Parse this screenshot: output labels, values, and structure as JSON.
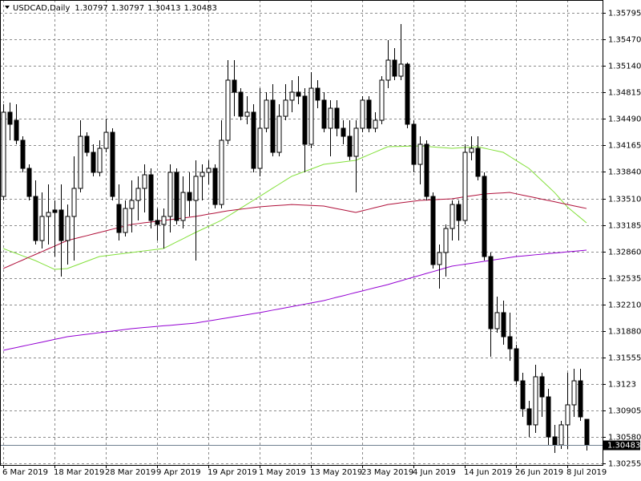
{
  "chart_data": {
    "type": "candlestick",
    "title": "USDCAD,Daily",
    "categories": [
      "6 Mar 2019",
      null,
      null,
      null,
      null,
      null,
      null,
      null,
      "18 Mar 2019",
      null,
      null,
      null,
      null,
      null,
      null,
      null,
      "28 Mar 2019",
      null,
      null,
      null,
      null,
      null,
      null,
      null,
      "9 Apr 2019",
      null,
      null,
      null,
      null,
      null,
      null,
      null,
      "19 Apr 2019",
      null,
      null,
      null,
      null,
      null,
      null,
      null,
      "1 May 2019",
      null,
      null,
      null,
      null,
      null,
      null,
      null,
      "13 May 2019",
      null,
      null,
      null,
      null,
      null,
      null,
      null,
      "23 May 2019",
      null,
      null,
      null,
      null,
      null,
      null,
      null,
      "4 Jun 2019",
      null,
      null,
      null,
      null,
      null,
      null,
      null,
      "14 Jun 2019",
      null,
      null,
      null,
      null,
      null,
      null,
      null,
      "26 Jun 2019",
      null,
      null,
      null,
      null,
      null,
      null,
      null,
      "8 Jul 2019",
      null,
      null,
      null
    ],
    "open": [
      1.33536,
      1.34571,
      1.34472,
      1.34226,
      1.33881,
      1.33536,
      1.32994,
      1.3329,
      1.33369,
      1.33369,
      1.32994,
      1.3329,
      1.33635,
      1.34275,
      1.34078,
      1.33832,
      1.34127,
      1.34324,
      1.33437,
      1.33093,
      1.33388,
      1.33487,
      1.33635,
      1.33802,
      1.33241,
      1.33192,
      1.3329,
      1.33832,
      1.33241,
      1.33585,
      1.33487,
      1.33783,
      1.33832,
      1.33881,
      1.33437,
      1.34226,
      1.34965,
      1.34817,
      1.34521,
      1.34571,
      1.33881,
      1.34374,
      1.34719,
      1.34078,
      1.34521,
      1.34719,
      1.34817,
      1.34768,
      1.34177,
      1.34866,
      1.34719,
      1.34374,
      1.3462,
      1.34374,
      1.34275,
      1.34029,
      1.34374,
      1.34719,
      1.34374,
      1.34472,
      1.34965,
      1.35211,
      1.35014,
      1.35162,
      1.34423,
      1.3393,
      1.34177,
      1.33536,
      1.32699,
      1.32847,
      1.33142,
      1.33437,
      1.33241,
      1.34078,
      1.34127,
      1.33783,
      1.32797,
      1.31911,
      1.32108,
      1.31812,
      1.31664,
      1.3127,
      1.30926,
      1.30729,
      1.3132,
      1.31073,
      1.30581,
      1.30482,
      1.30729,
      1.30975,
      1.3127,
      1.30797
    ],
    "high": [
      1.34669,
      1.34689,
      1.34669,
      1.34275,
      1.3393,
      1.33733,
      1.33585,
      1.33684,
      1.33487,
      1.33684,
      1.33437,
      1.34029,
      1.34472,
      1.34324,
      1.34177,
      1.34226,
      1.34492,
      1.34374,
      1.33684,
      1.33487,
      1.33733,
      1.33783,
      1.3393,
      1.33881,
      1.33388,
      1.33388,
      1.3393,
      1.33881,
      1.33783,
      1.33832,
      1.3398,
      1.3393,
      1.3398,
      1.3393,
      1.34472,
      1.35211,
      1.35211,
      1.34866,
      1.34768,
      1.34669,
      1.34866,
      1.34817,
      1.34916,
      1.34669,
      1.34916,
      1.34965,
      1.35014,
      1.34866,
      1.35063,
      1.34965,
      1.34817,
      1.34719,
      1.34719,
      1.34472,
      1.34472,
      1.34472,
      1.34768,
      1.34768,
      1.34571,
      1.35014,
      1.35457,
      1.35359,
      1.35654,
      1.35182,
      1.34472,
      1.34275,
      1.34226,
      1.33585,
      1.32945,
      1.33192,
      1.33487,
      1.33487,
      1.34177,
      1.34275,
      1.34275,
      1.33832,
      1.32847,
      1.32305,
      1.32256,
      1.32108,
      1.31714,
      1.31369,
      1.31024,
      1.31467,
      1.31369,
      1.31172,
      1.30729,
      1.30778,
      1.31369,
      1.31418,
      1.31418,
      1.30797
    ],
    "low": [
      1.33487,
      1.34226,
      1.34177,
      1.33832,
      1.33487,
      1.32945,
      1.32896,
      1.32945,
      1.32797,
      1.32551,
      1.32699,
      1.32748,
      1.33585,
      1.34029,
      1.33783,
      1.33783,
      1.34078,
      1.33487,
      1.32994,
      1.33044,
      1.33093,
      1.33241,
      1.33339,
      1.33142,
      1.32994,
      1.32896,
      1.33093,
      1.33192,
      1.33142,
      1.3329,
      1.32748,
      1.33487,
      1.33684,
      1.33388,
      1.33388,
      1.34177,
      1.34521,
      1.34472,
      1.34423,
      1.33832,
      1.33783,
      1.34324,
      1.34029,
      1.34029,
      1.34472,
      1.34571,
      1.34669,
      1.33832,
      1.34127,
      1.3462,
      1.34324,
      1.34029,
      1.34275,
      1.34177,
      1.3398,
      1.33585,
      1.34324,
      1.34324,
      1.34324,
      1.34423,
      1.34866,
      1.34965,
      1.34965,
      1.34374,
      1.33832,
      1.33684,
      1.33487,
      1.3265,
      1.32403,
      1.32551,
      1.32994,
      1.32994,
      1.33192,
      1.3398,
      1.33733,
      1.32748,
      1.31566,
      1.31861,
      1.31714,
      1.31516,
      1.31221,
      1.30827,
      1.30581,
      1.3063,
      1.30827,
      1.30482,
      1.30384,
      1.30433,
      1.30433,
      1.30827,
      1.30778,
      1.30413
    ],
    "close": [
      1.34571,
      1.34423,
      1.34226,
      1.33881,
      1.33536,
      1.32994,
      1.3329,
      1.33339,
      1.33339,
      1.32994,
      1.3329,
      1.33635,
      1.34275,
      1.34078,
      1.33832,
      1.34127,
      1.34324,
      1.33536,
      1.33093,
      1.33388,
      1.33487,
      1.33635,
      1.33802,
      1.33241,
      1.33192,
      1.3329,
      1.33832,
      1.33241,
      1.33585,
      1.33487,
      1.33783,
      1.33832,
      1.33881,
      1.33437,
      1.34226,
      1.34965,
      1.34817,
      1.34521,
      1.34571,
      1.33881,
      1.34374,
      1.34719,
      1.34078,
      1.34521,
      1.34719,
      1.34817,
      1.34768,
      1.34177,
      1.34866,
      1.34719,
      1.34374,
      1.3462,
      1.34374,
      1.34275,
      1.34029,
      1.34374,
      1.34719,
      1.34374,
      1.34472,
      1.34965,
      1.35211,
      1.35014,
      1.35162,
      1.34423,
      1.3393,
      1.34177,
      1.33536,
      1.32699,
      1.32847,
      1.33142,
      1.33437,
      1.33241,
      1.34078,
      1.34127,
      1.33783,
      1.32797,
      1.31911,
      1.32108,
      1.31812,
      1.31664,
      1.3127,
      1.30926,
      1.30729,
      1.3132,
      1.31073,
      1.30581,
      1.30482,
      1.30729,
      1.30975,
      1.3127,
      1.30827,
      1.30483
    ],
    "moving_averages": [
      {
        "color": "#84e03c",
        "values": [
          1.32896,
          1.32866,
          1.32837,
          1.32807,
          1.32778,
          1.32748,
          1.32712,
          1.32676,
          1.3264,
          1.32645,
          1.3265,
          1.32679,
          1.32709,
          1.32738,
          1.32768,
          1.32797,
          1.32807,
          1.32817,
          1.32827,
          1.32837,
          1.32847,
          1.32857,
          1.32867,
          1.32876,
          1.32886,
          1.32896,
          1.32935,
          1.32975,
          1.33014,
          1.33054,
          1.33093,
          1.3313,
          1.33167,
          1.33204,
          1.33241,
          1.3329,
          1.33339,
          1.33389,
          1.33438,
          1.33487,
          1.33536,
          1.33585,
          1.33635,
          1.33684,
          1.33734,
          1.33783,
          1.33812,
          1.33842,
          1.33871,
          1.33901,
          1.3393,
          1.3394,
          1.3395,
          1.3396,
          1.3397,
          1.3398,
          1.34013,
          1.34047,
          1.3408,
          1.34114,
          1.34147,
          1.34149,
          1.34151,
          1.34153,
          1.34155,
          1.34157,
          1.34151,
          1.34145,
          1.34139,
          1.34133,
          1.34127,
          1.34132,
          1.34137,
          1.34142,
          1.34147,
          1.3413,
          1.34112,
          1.34095,
          1.34078,
          1.34029,
          1.33979,
          1.3393,
          1.33881,
          1.33807,
          1.33733,
          1.33659,
          1.33585,
          1.33497,
          1.33408,
          1.33342,
          1.33277,
          1.33211
        ]
      },
      {
        "color": "#b0103a",
        "values": [
          1.3265,
          1.32684,
          1.32719,
          1.32753,
          1.32788,
          1.32822,
          1.32856,
          1.32891,
          1.32925,
          1.3296,
          1.32994,
          1.33014,
          1.33034,
          1.33053,
          1.33073,
          1.33093,
          1.33113,
          1.33133,
          1.33152,
          1.33172,
          1.33192,
          1.33202,
          1.33212,
          1.33221,
          1.33231,
          1.33241,
          1.33251,
          1.33261,
          1.3327,
          1.3328,
          1.3329,
          1.33304,
          1.33318,
          1.33331,
          1.33345,
          1.33359,
          1.33369,
          1.33379,
          1.33388,
          1.33398,
          1.33408,
          1.33414,
          1.3342,
          1.33425,
          1.33431,
          1.33437,
          1.33433,
          1.33429,
          1.33426,
          1.33422,
          1.33418,
          1.33402,
          1.33386,
          1.33371,
          1.33355,
          1.33339,
          1.33359,
          1.33378,
          1.33398,
          1.33417,
          1.33437,
          1.33447,
          1.33457,
          1.33467,
          1.33477,
          1.33487,
          1.33491,
          1.33495,
          1.33499,
          1.33503,
          1.33507,
          1.33519,
          1.33531,
          1.33542,
          1.33554,
          1.33566,
          1.33571,
          1.33576,
          1.3358,
          1.33585,
          1.33569,
          1.33552,
          1.33536,
          1.3352,
          1.33503,
          1.33487,
          1.33471,
          1.33454,
          1.33438,
          1.33421,
          1.33405,
          1.33388
        ]
      },
      {
        "color": "#9400d3",
        "values": [
          1.31645,
          1.31662,
          1.31678,
          1.31695,
          1.31712,
          1.31729,
          1.31745,
          1.31762,
          1.31779,
          1.31795,
          1.31812,
          1.31822,
          1.31832,
          1.31842,
          1.31852,
          1.31862,
          1.31871,
          1.31881,
          1.31891,
          1.31901,
          1.31911,
          1.31918,
          1.31925,
          1.31932,
          1.31939,
          1.31946,
          1.31952,
          1.31959,
          1.31966,
          1.31973,
          1.3198,
          1.31993,
          1.32006,
          1.32018,
          1.32031,
          1.32044,
          1.32057,
          1.3207,
          1.32082,
          1.32095,
          1.32108,
          1.32123,
          1.32138,
          1.32152,
          1.32167,
          1.32182,
          1.32197,
          1.32212,
          1.32226,
          1.32241,
          1.32256,
          1.32276,
          1.32296,
          1.32315,
          1.32335,
          1.32355,
          1.32374,
          1.32394,
          1.32414,
          1.32433,
          1.32453,
          1.32476,
          1.32498,
          1.32521,
          1.32544,
          1.32566,
          1.32589,
          1.32611,
          1.32634,
          1.32657,
          1.32679,
          1.32691,
          1.32703,
          1.32714,
          1.32726,
          1.32738,
          1.3275,
          1.32762,
          1.32773,
          1.32785,
          1.32797,
          1.32804,
          1.32811,
          1.32819,
          1.32826,
          1.32833,
          1.3284,
          1.32847,
          1.32855,
          1.32862,
          1.32869,
          1.32876
        ]
      }
    ],
    "bull_color": "#ffffff",
    "bear_color": "#000000",
    "ylim": [
      1.30236,
      1.3595
    ],
    "yticks": [
      1.35795,
      {
        "value": 1.3547,
        "label": "1.35470"
      },
      {
        "value": 1.3514,
        "label": "1.35140"
      },
      1.34815,
      {
        "value": 1.3449,
        "label": "1.34490"
      },
      1.34165,
      {
        "value": 1.3384,
        "label": "1.33840"
      },
      {
        "value": 1.3351,
        "label": "1.33510"
      },
      1.33185,
      {
        "value": 1.3286,
        "label": "1.32860"
      },
      1.32535,
      {
        "value": 1.3221,
        "label": "1.32210"
      },
      {
        "value": 1.3188,
        "label": "1.31880"
      },
      1.31555,
      1.3123,
      1.30905,
      {
        "value": 1.3058,
        "label": "1.30580"
      },
      1.30255
    ],
    "grid": true
  }
}
